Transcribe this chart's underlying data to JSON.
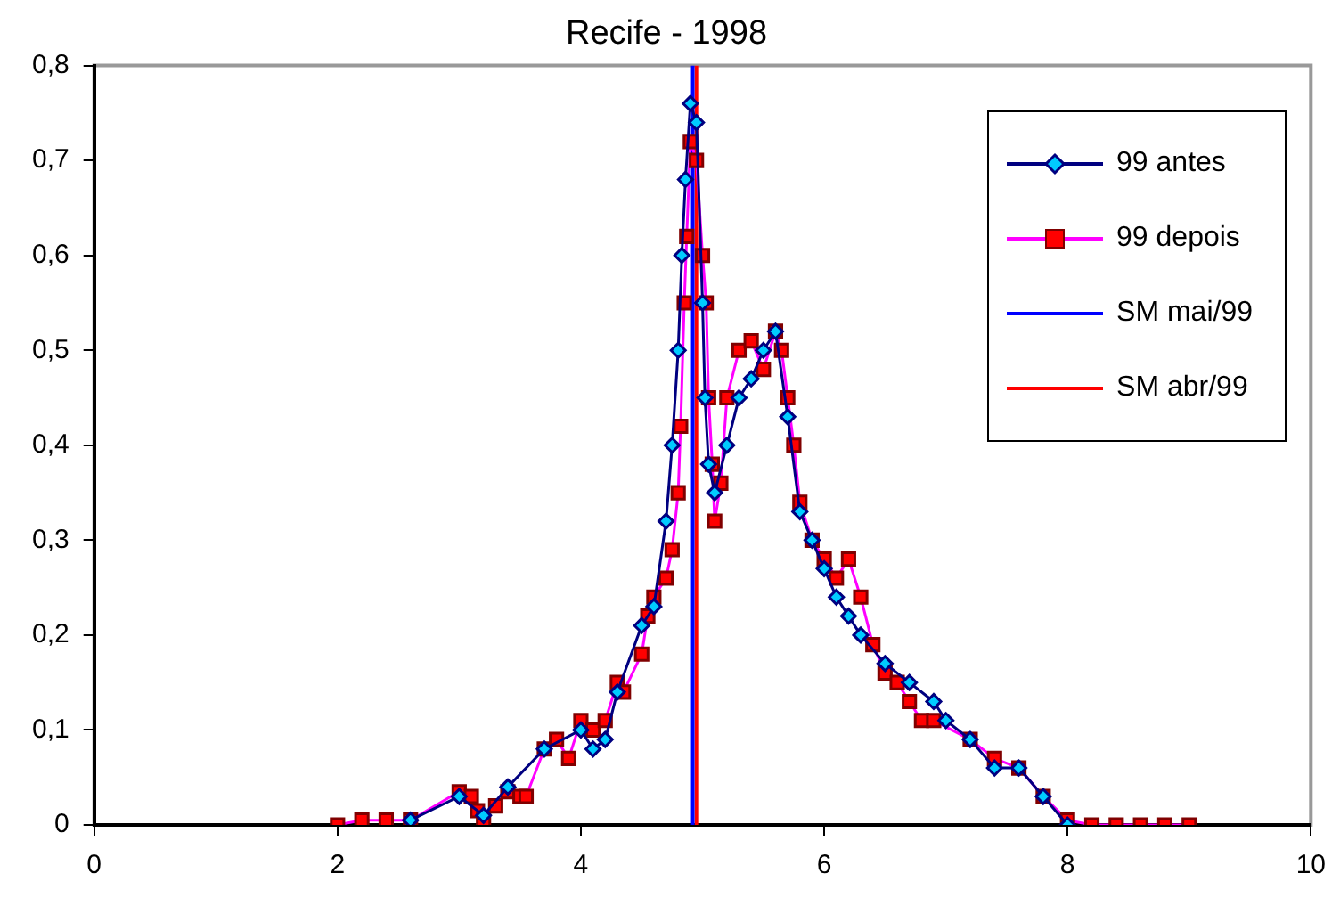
{
  "chart_data": {
    "type": "line",
    "title": "Recife - 1998",
    "xlim": [
      0,
      10
    ],
    "xticks": [
      0,
      2,
      4,
      6,
      8,
      10
    ],
    "ylim": [
      0,
      0.8
    ],
    "yticks": [
      0,
      {
        "value": 0.1,
        "label": "0,1"
      },
      {
        "value": 0.2,
        "label": "0,2"
      },
      {
        "value": 0.3,
        "label": "0,3"
      },
      {
        "value": 0.4,
        "label": "0,4"
      },
      {
        "value": 0.5,
        "label": "0,5"
      },
      {
        "value": 0.6,
        "label": "0,6"
      },
      {
        "value": 0.7,
        "label": "0,7"
      },
      {
        "value": 0.8,
        "label": "0,8"
      }
    ],
    "grid": false,
    "legend": "top right",
    "line_style": "solid",
    "series": [
      {
        "name": "99 antes",
        "color": "#000080",
        "marker": "diamond",
        "x": [
          2.6,
          3.0,
          3.2,
          3.4,
          3.7,
          4.0,
          4.1,
          4.2,
          4.3,
          4.5,
          4.6,
          4.7,
          4.75,
          4.8,
          4.83,
          4.86,
          4.9,
          4.95,
          5.0,
          5.02,
          5.05,
          5.1,
          5.2,
          5.3,
          5.4,
          5.5,
          5.6,
          5.7,
          5.8,
          5.9,
          6.0,
          6.1,
          6.2,
          6.3,
          6.5,
          6.7,
          6.9,
          7.0,
          7.2,
          7.4,
          7.6,
          7.8,
          8.0
        ],
        "values": [
          0.005,
          0.03,
          0.01,
          0.04,
          0.08,
          0.1,
          0.08,
          0.09,
          0.14,
          0.21,
          0.23,
          0.32,
          0.4,
          0.5,
          0.6,
          0.68,
          0.76,
          0.74,
          0.55,
          0.45,
          0.38,
          0.35,
          0.4,
          0.45,
          0.47,
          0.5,
          0.52,
          0.43,
          0.33,
          0.3,
          0.27,
          0.24,
          0.22,
          0.2,
          0.17,
          0.15,
          0.13,
          0.11,
          0.09,
          0.06,
          0.06,
          0.03,
          0
        ]
      },
      {
        "name": "99 depois",
        "color": "#ff00ff",
        "marker": "square",
        "x": [
          2.0,
          2.2,
          2.4,
          2.6,
          3.0,
          3.1,
          3.15,
          3.2,
          3.3,
          3.4,
          3.5,
          3.55,
          3.7,
          3.8,
          3.9,
          4.0,
          4.1,
          4.2,
          4.3,
          4.35,
          4.5,
          4.55,
          4.6,
          4.7,
          4.75,
          4.8,
          4.82,
          4.85,
          4.87,
          4.9,
          4.95,
          5.0,
          5.03,
          5.05,
          5.08,
          5.1,
          5.15,
          5.2,
          5.3,
          5.4,
          5.5,
          5.6,
          5.65,
          5.7,
          5.75,
          5.8,
          5.9,
          6.0,
          6.1,
          6.2,
          6.3,
          6.4,
          6.5,
          6.6,
          6.7,
          6.8,
          6.9,
          7.2,
          7.4,
          7.6,
          7.8,
          8.0,
          8.2,
          8.4,
          8.6,
          8.8,
          9.0
        ],
        "values": [
          0,
          0.005,
          0.005,
          0.005,
          0.035,
          0.03,
          0.015,
          0.005,
          0.02,
          0.035,
          0.03,
          0.03,
          0.08,
          0.09,
          0.07,
          0.11,
          0.1,
          0.11,
          0.15,
          0.14,
          0.18,
          0.22,
          0.24,
          0.26,
          0.29,
          0.35,
          0.42,
          0.55,
          0.62,
          0.72,
          0.7,
          0.6,
          0.55,
          0.45,
          0.38,
          0.32,
          0.36,
          0.45,
          0.5,
          0.51,
          0.48,
          0.52,
          0.5,
          0.45,
          0.4,
          0.34,
          0.3,
          0.28,
          0.26,
          0.28,
          0.24,
          0.19,
          0.16,
          0.15,
          0.13,
          0.11,
          0.11,
          0.09,
          0.07,
          0.06,
          0.03,
          0.005,
          0,
          0,
          0,
          0,
          0
        ]
      },
      {
        "name": "SM mai/99",
        "color": "#0000ff",
        "marker": "none",
        "x": [
          4.92,
          4.92
        ],
        "values": [
          0,
          0.8
        ]
      },
      {
        "name": "SM abr/99",
        "color": "#ff0000",
        "marker": "none",
        "x": [
          4.95,
          4.95
        ],
        "values": [
          0,
          0.8
        ]
      }
    ]
  }
}
